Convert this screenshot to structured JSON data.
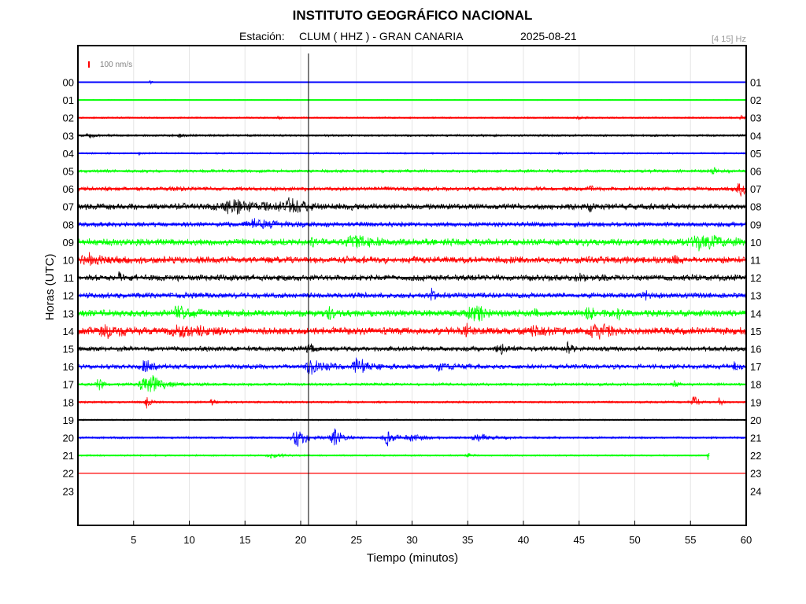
{
  "chart_data": {
    "type": "line",
    "title": "INSTITUTO GEOGRÁFICO NACIONAL",
    "station_prefix": "Estación:",
    "station": "CLUM ( HHZ ) - GRAN CANARIA",
    "date": "2025-08-21",
    "filter": "[4 15] Hz",
    "scale_label": "100 nm/s",
    "xlabel": "Tiempo (minutos)",
    "ylabel": "Horas (UTC)",
    "xlim": [
      0,
      60
    ],
    "x_ticks": [
      "5",
      "10",
      "15",
      "20",
      "25",
      "30",
      "35",
      "40",
      "45",
      "50",
      "55",
      "60"
    ],
    "left_hours": [
      "00",
      "01",
      "02",
      "03",
      "04",
      "05",
      "06",
      "07",
      "08",
      "09",
      "10",
      "11",
      "12",
      "13",
      "14",
      "15",
      "16",
      "17",
      "18",
      "19",
      "20",
      "21",
      "22",
      "23"
    ],
    "right_hours": [
      "01",
      "02",
      "03",
      "04",
      "05",
      "06",
      "07",
      "08",
      "09",
      "10",
      "11",
      "12",
      "13",
      "14",
      "15",
      "16",
      "17",
      "18",
      "19",
      "20",
      "21",
      "22",
      "23",
      "24"
    ],
    "grid": true,
    "marker_minute": 20.7,
    "colors": [
      "#0000ff",
      "#00ff00",
      "#ff0000",
      "#000000"
    ],
    "series": [
      {
        "hour": "00",
        "color": "#0000ff",
        "noise": 0.6,
        "end_minute": 60,
        "events": [
          [
            6.5,
            2.5,
            0.2
          ]
        ]
      },
      {
        "hour": "01",
        "color": "#00ff00",
        "noise": 0.6,
        "end_minute": 60,
        "events": []
      },
      {
        "hour": "02",
        "color": "#ff0000",
        "noise": 1.2,
        "end_minute": 60,
        "events": [
          [
            18.0,
            2.0,
            0.3
          ],
          [
            45.0,
            2.5,
            0.3
          ],
          [
            59.5,
            3.5,
            0.2
          ]
        ]
      },
      {
        "hour": "03",
        "color": "#000000",
        "noise": 1.5,
        "end_minute": 60,
        "events": [
          [
            1.0,
            3.0,
            0.4
          ],
          [
            9.0,
            2.5,
            0.5
          ]
        ]
      },
      {
        "hour": "04",
        "color": "#0000ff",
        "noise": 1.2,
        "end_minute": 60,
        "events": [
          [
            5.5,
            2.5,
            0.2
          ],
          [
            43.0,
            2.0,
            0.3
          ]
        ]
      },
      {
        "hour": "05",
        "color": "#00ff00",
        "noise": 2.2,
        "end_minute": 60,
        "events": [
          [
            57.0,
            4.0,
            0.6
          ]
        ]
      },
      {
        "hour": "06",
        "color": "#ff0000",
        "noise": 3.0,
        "end_minute": 60,
        "events": [
          [
            59.5,
            9.0,
            0.7
          ],
          [
            46.0,
            6.0,
            0.2
          ]
        ]
      },
      {
        "hour": "07",
        "color": "#000000",
        "noise": 4.5,
        "end_minute": 60,
        "events": [
          [
            14.0,
            8.0,
            2.5
          ],
          [
            19.0,
            7.0,
            1.5
          ],
          [
            46.0,
            9.0,
            0.2
          ]
        ]
      },
      {
        "hour": "08",
        "color": "#0000ff",
        "noise": 3.5,
        "end_minute": 60,
        "events": [
          [
            16.0,
            5.0,
            2.0
          ]
        ]
      },
      {
        "hour": "09",
        "color": "#00ff00",
        "noise": 5.0,
        "end_minute": 60,
        "events": [
          [
            21.0,
            10.0,
            0.2
          ],
          [
            25.0,
            7.0,
            1.5
          ],
          [
            56.0,
            9.0,
            1.8
          ]
        ]
      },
      {
        "hour": "10",
        "color": "#ff0000",
        "noise": 5.0,
        "end_minute": 60,
        "events": [
          [
            1.0,
            6.0,
            1.0
          ],
          [
            53.5,
            7.0,
            0.3
          ]
        ]
      },
      {
        "hour": "11",
        "color": "#000000",
        "noise": 4.5,
        "end_minute": 60,
        "events": [
          [
            3.7,
            9.0,
            0.15
          ],
          [
            45.0,
            6.0,
            0.4
          ]
        ]
      },
      {
        "hour": "12",
        "color": "#0000ff",
        "noise": 4.0,
        "end_minute": 60,
        "events": [
          [
            31.8,
            9.0,
            0.2
          ],
          [
            51.0,
            5.0,
            0.4
          ]
        ]
      },
      {
        "hour": "13",
        "color": "#00ff00",
        "noise": 5.0,
        "end_minute": 60,
        "events": [
          [
            9.0,
            10.0,
            0.8
          ],
          [
            35.5,
            19.0,
            0.7
          ],
          [
            22.5,
            10.0,
            0.3
          ],
          [
            45.8,
            11.0,
            0.3
          ],
          [
            41.0,
            9.0,
            0.3
          ],
          [
            48.5,
            7.0,
            0.3
          ]
        ]
      },
      {
        "hour": "14",
        "color": "#ff0000",
        "noise": 5.5,
        "end_minute": 60,
        "events": [
          [
            2.5,
            7.0,
            1.0
          ],
          [
            9.5,
            7.0,
            1.5
          ],
          [
            41.0,
            9.0,
            0.6
          ],
          [
            46.5,
            16.0,
            0.7
          ],
          [
            35.0,
            8.0,
            0.4
          ]
        ]
      },
      {
        "hour": "15",
        "color": "#000000",
        "noise": 3.5,
        "end_minute": 60,
        "events": [
          [
            3.8,
            6.0,
            0.2
          ],
          [
            20.7,
            10.0,
            0.3
          ],
          [
            37.8,
            9.0,
            0.5
          ],
          [
            44.0,
            8.0,
            0.4
          ]
        ]
      },
      {
        "hour": "16",
        "color": "#0000ff",
        "noise": 3.5,
        "end_minute": 60,
        "events": [
          [
            6.0,
            11.0,
            0.5
          ],
          [
            21.0,
            15.0,
            0.9
          ],
          [
            25.2,
            14.0,
            0.8
          ],
          [
            32.5,
            8.0,
            0.6
          ],
          [
            59.0,
            7.0,
            0.3
          ]
        ]
      },
      {
        "hour": "17",
        "color": "#00ff00",
        "noise": 2.0,
        "end_minute": 60,
        "events": [
          [
            1.8,
            13.0,
            0.3
          ],
          [
            6.2,
            18.0,
            1.2
          ],
          [
            53.5,
            6.0,
            0.3
          ]
        ]
      },
      {
        "hour": "18",
        "color": "#ff0000",
        "noise": 1.5,
        "end_minute": 60,
        "events": [
          [
            6.2,
            9.0,
            0.3
          ],
          [
            12.0,
            4.0,
            0.3
          ],
          [
            55.3,
            17.0,
            0.3
          ],
          [
            57.6,
            12.0,
            0.15
          ]
        ]
      },
      {
        "hour": "19",
        "color": "#000000",
        "noise": 1.0,
        "end_minute": 60,
        "events": []
      },
      {
        "hour": "20",
        "color": "#0000ff",
        "noise": 1.5,
        "end_minute": 60,
        "events": [
          [
            19.7,
            16.0,
            0.8
          ],
          [
            23.0,
            11.0,
            0.7
          ],
          [
            27.7,
            14.0,
            0.6
          ],
          [
            30.0,
            7.0,
            0.9
          ],
          [
            36.0,
            5.0,
            1.2
          ]
        ]
      },
      {
        "hour": "21",
        "color": "#00ff00",
        "noise": 1.2,
        "end_minute": 56.7,
        "events": [
          [
            17.5,
            4.0,
            0.8
          ],
          [
            35.0,
            4.0,
            0.2
          ],
          [
            56.6,
            12.0,
            0.12
          ]
        ]
      },
      {
        "hour": "22",
        "color": "#ff0000",
        "noise": 0,
        "end_minute": 60,
        "events": []
      }
    ]
  }
}
